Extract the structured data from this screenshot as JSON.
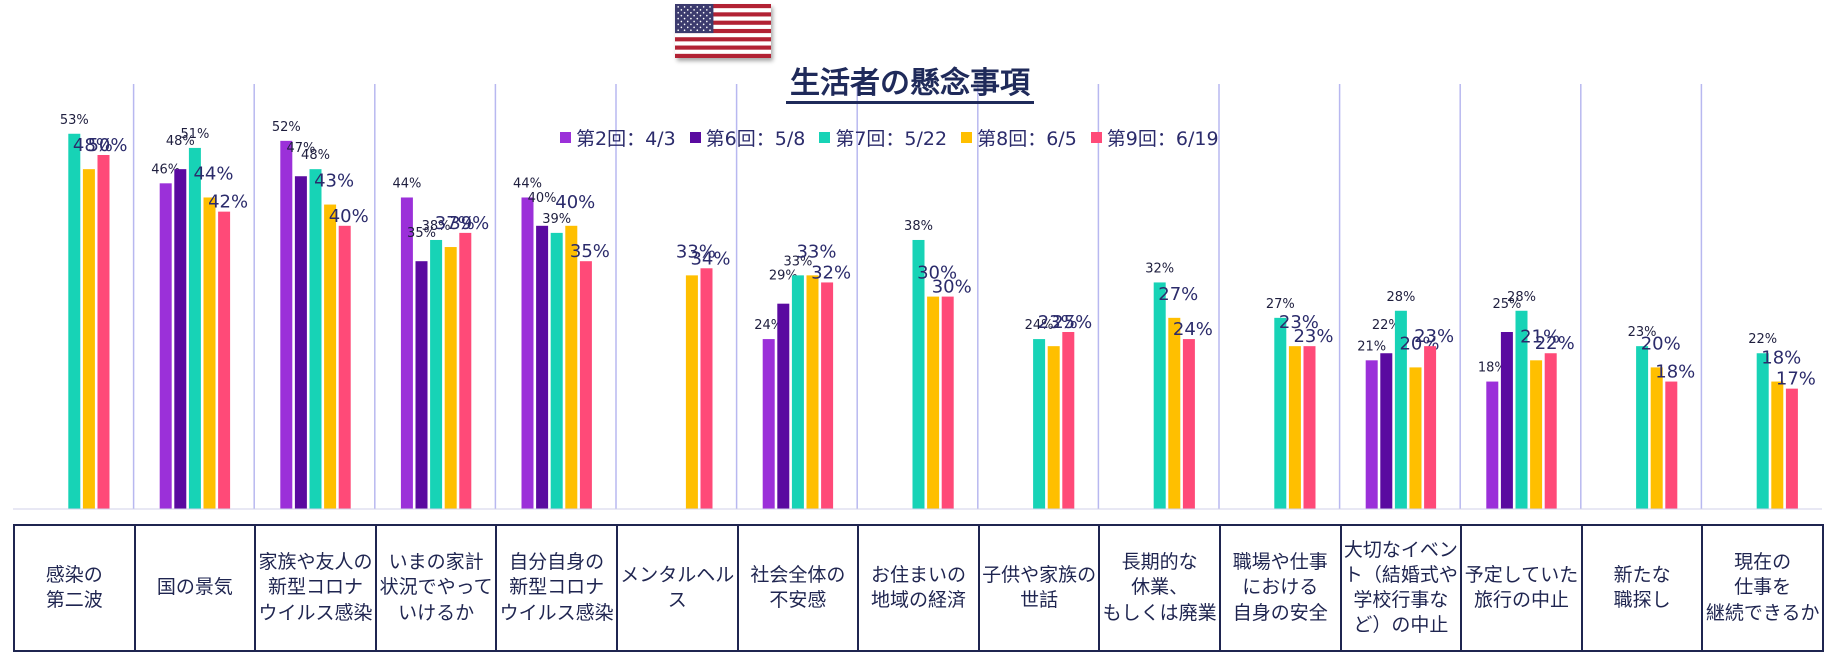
{
  "title": "生活者の懸念事項",
  "flag": {
    "name": "United States flag"
  },
  "colors": [
    "#9b30d9",
    "#5a0aa0",
    "#17d3b6",
    "#ffbf00",
    "#ff4a78"
  ],
  "legend": [
    "第2回：4/3",
    "第6回：5/8",
    "第7回：5/22",
    "第8回：6/5",
    "第9回：6/19"
  ],
  "chart_data": {
    "type": "bar",
    "title": "生活者の懸念事項",
    "unit": "%",
    "ylim": [
      0,
      60
    ],
    "legend_position": "top",
    "categories": [
      "感染の\n第二波",
      "国の景気",
      "家族や友人の\n新型コロナ\nウイルス感染",
      "いまの家計\n状況でやって\nいけるか",
      "自分自身の\n新型コロナ\nウイルス感染",
      "メンタルヘルス",
      "社会全体の\n不安感",
      "お住まいの\n地域の経済",
      "子供や家族の\n世話",
      "長期的な\n休業、\nもしくは廃業",
      "職場や仕事\nにおける\n自身の安全",
      "大切なイベン\nト（結婚式や\n学校行事な\nど）の中止",
      "予定していた\n旅行の中止",
      "新たな\n職探し",
      "現在の\n仕事を\n継続できるか"
    ],
    "series": [
      {
        "name": "第2回：4/3",
        "values": [
          null,
          46,
          52,
          44,
          44,
          null,
          24,
          null,
          null,
          null,
          null,
          21,
          18,
          null,
          null
        ]
      },
      {
        "name": "第6回：5/8",
        "values": [
          null,
          48,
          47,
          35,
          40,
          null,
          29,
          null,
          null,
          null,
          null,
          22,
          25,
          null,
          null
        ]
      },
      {
        "name": "第7回：5/22",
        "values": [
          53,
          51,
          48,
          38,
          39,
          null,
          33,
          38,
          24,
          32,
          27,
          28,
          28,
          23,
          22
        ]
      },
      {
        "name": "第8回：6/5",
        "values": [
          48,
          44,
          43,
          37,
          40,
          33,
          33,
          30,
          23,
          27,
          23,
          20,
          21,
          20,
          18
        ]
      },
      {
        "name": "第9回：6/19",
        "values": [
          50,
          42,
          40,
          39,
          35,
          34,
          32,
          30,
          25,
          24,
          23,
          23,
          22,
          18,
          17
        ]
      }
    ]
  }
}
